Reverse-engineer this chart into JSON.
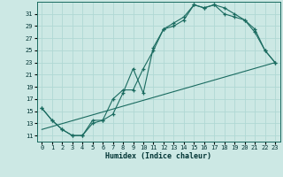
{
  "bg_color": "#cce8e4",
  "line_color": "#1a6b60",
  "grid_color": "#b0d8d4",
  "xlabel": "Humidex (Indice chaleur)",
  "xlim": [
    -0.5,
    23.5
  ],
  "ylim": [
    10,
    33
  ],
  "xticks": [
    0,
    1,
    2,
    3,
    4,
    5,
    6,
    7,
    8,
    9,
    10,
    11,
    12,
    13,
    14,
    15,
    16,
    17,
    18,
    19,
    20,
    21,
    22,
    23
  ],
  "yticks": [
    11,
    13,
    15,
    17,
    19,
    21,
    23,
    25,
    27,
    29,
    31
  ],
  "curve1_x": [
    0,
    1,
    2,
    3,
    4,
    5,
    6,
    7,
    8,
    9,
    10,
    11,
    12,
    13,
    14,
    15,
    16,
    17,
    18,
    19,
    20,
    21,
    22,
    23
  ],
  "curve1_y": [
    15.5,
    13.5,
    12.0,
    11.0,
    11.0,
    13.5,
    13.5,
    14.5,
    18.0,
    22.0,
    18.0,
    25.5,
    28.5,
    29.0,
    30.0,
    32.5,
    32.0,
    32.5,
    32.0,
    31.0,
    30.0,
    28.5,
    25.0,
    23.0
  ],
  "curve2_x": [
    0,
    1,
    2,
    3,
    4,
    5,
    6,
    7,
    8,
    9,
    10,
    11,
    12,
    13,
    14,
    15,
    16,
    17,
    18,
    19,
    20,
    21,
    22,
    23
  ],
  "curve2_y": [
    15.5,
    13.5,
    12.0,
    11.0,
    11.0,
    13.0,
    13.5,
    17.0,
    18.5,
    18.5,
    22.0,
    25.0,
    28.5,
    29.5,
    30.5,
    32.5,
    32.0,
    32.5,
    31.0,
    30.5,
    30.0,
    28.0,
    25.0,
    23.0
  ],
  "curve3_x": [
    0,
    23
  ],
  "curve3_y": [
    12,
    23
  ]
}
